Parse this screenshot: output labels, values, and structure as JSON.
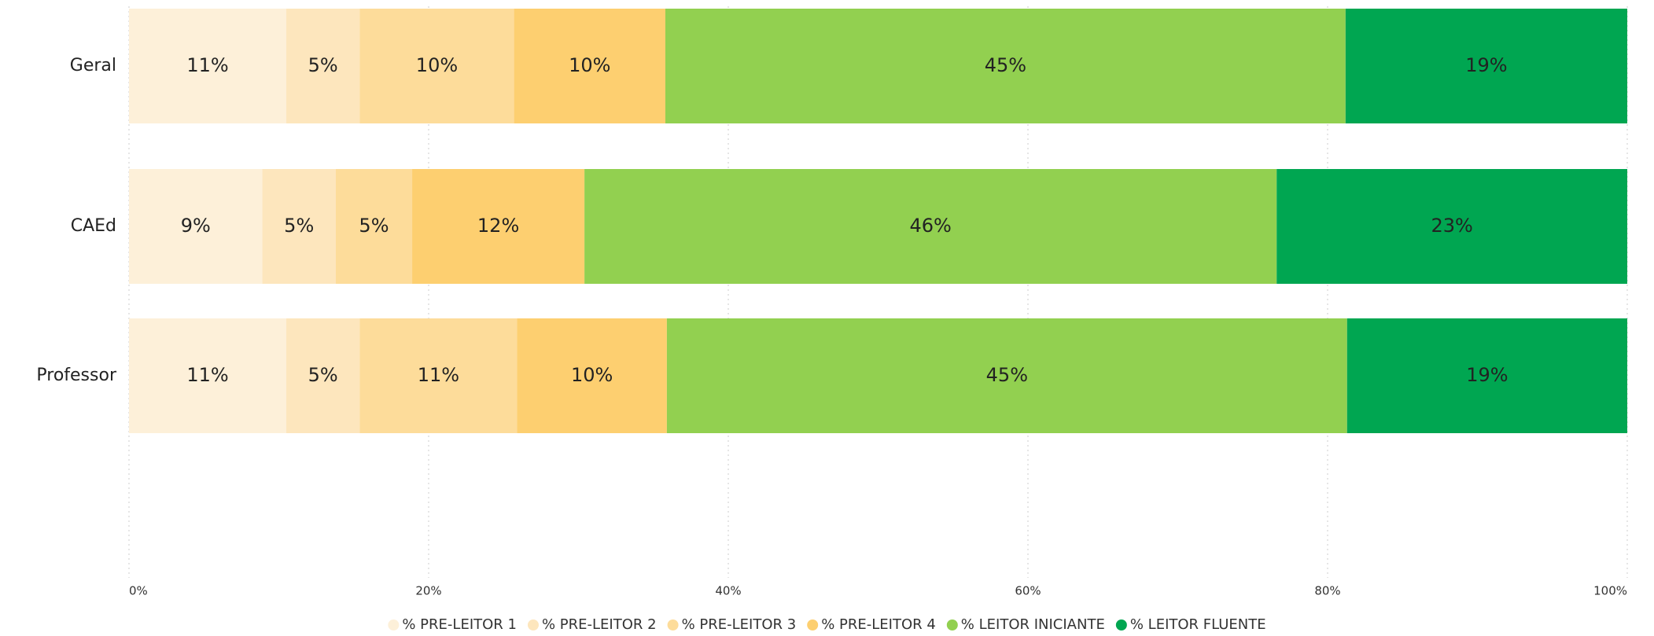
{
  "chart_data": {
    "type": "stacked-barh",
    "categories": [
      "Geral",
      "CAEd",
      "Professor"
    ],
    "series": [
      {
        "name": "% PRE-LEITOR 1",
        "color": "#fdf0d9",
        "values": [
          10.5,
          8.9,
          10.5
        ],
        "value_labels": [
          "11%",
          "9%",
          "11%"
        ]
      },
      {
        "name": "% PRE-LEITOR 2",
        "color": "#fde6bd",
        "values": [
          4.9,
          4.9,
          4.9
        ],
        "value_labels": [
          "5%",
          "5%",
          "5%"
        ]
      },
      {
        "name": "% PRE-LEITOR 3",
        "color": "#fddc9a",
        "values": [
          10.3,
          5.1,
          10.5
        ],
        "value_labels": [
          "10%",
          "5%",
          "11%"
        ]
      },
      {
        "name": "% PRE-LEITOR 4",
        "color": "#fdcf70",
        "values": [
          10.1,
          11.5,
          10.0
        ],
        "value_labels": [
          "10%",
          "12%",
          "10%"
        ]
      },
      {
        "name": "% LEITOR INICIANTE",
        "color": "#92d050",
        "values": [
          45.4,
          46.2,
          45.4
        ],
        "value_labels": [
          "45%",
          "46%",
          "45%"
        ]
      },
      {
        "name": "% LEITOR FLUENTE",
        "color": "#00a651",
        "values": [
          18.8,
          23.4,
          18.7
        ],
        "value_labels": [
          "19%",
          "23%",
          "19%"
        ]
      }
    ],
    "xlim": [
      0,
      100
    ],
    "xticks": [
      {
        "value": 0,
        "label": "0%"
      },
      {
        "value": 20,
        "label": "20%"
      },
      {
        "value": 40,
        "label": "40%"
      },
      {
        "value": 60,
        "label": "60%"
      },
      {
        "value": 80,
        "label": "80%"
      },
      {
        "value": 100,
        "label": "100%"
      }
    ],
    "grid": true,
    "legend": "bottom"
  }
}
